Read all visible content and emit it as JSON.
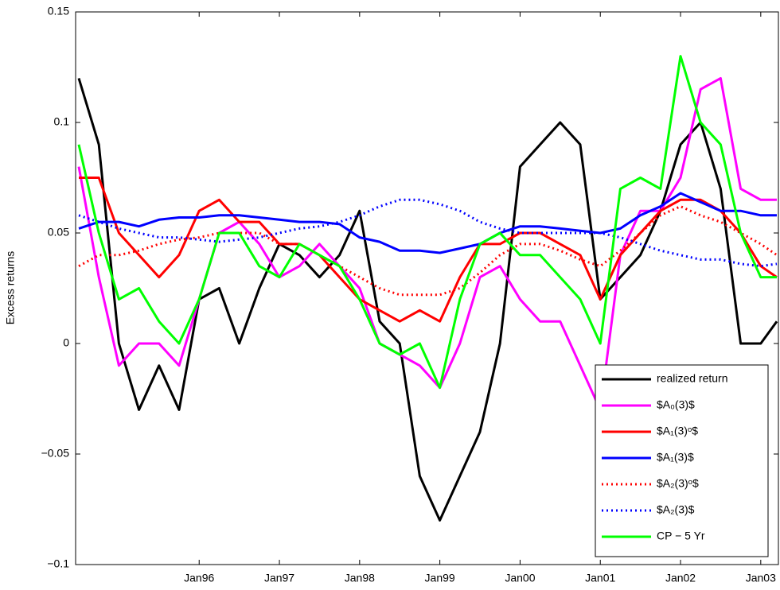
{
  "chart_data": {
    "type": "line",
    "ylabel": "Excess returns",
    "x": [
      1994.5,
      1994.75,
      1995,
      1995.25,
      1995.5,
      1995.75,
      1996,
      1996.25,
      1996.5,
      1996.75,
      1997,
      1997.25,
      1997.5,
      1997.75,
      1998,
      1998.25,
      1998.5,
      1998.75,
      1999,
      1999.25,
      1999.5,
      1999.75,
      2000,
      2000.25,
      2000.5,
      2000.75,
      2001,
      2001.25,
      2001.5,
      2001.75,
      2002,
      2002.25,
      2002.5,
      2002.75,
      2003,
      2003.2
    ],
    "xlim": [
      1994.46,
      2003.22
    ],
    "xticks": [
      {
        "value": 1996,
        "label": "Jan96"
      },
      {
        "value": 1997,
        "label": "Jan97"
      },
      {
        "value": 1998,
        "label": "Jan98"
      },
      {
        "value": 1999,
        "label": "Jan99"
      },
      {
        "value": 2000,
        "label": "Jan00"
      },
      {
        "value": 2001,
        "label": "Jan01"
      },
      {
        "value": 2002,
        "label": "Jan02"
      },
      {
        "value": 2003,
        "label": "Jan03"
      }
    ],
    "ylim": [
      -0.1,
      0.15
    ],
    "yticks": [
      {
        "value": -0.1,
        "label": "−0.1"
      },
      {
        "value": -0.05,
        "label": "−0.05"
      },
      0,
      0.05,
      0.1,
      0.15
    ],
    "legend": "lower right",
    "series": [
      {
        "name": "realized return",
        "color": "#000000",
        "dash": "solid",
        "values": [
          0.12,
          0.09,
          0.0,
          -0.03,
          -0.01,
          -0.03,
          0.02,
          0.025,
          0.0,
          0.025,
          0.045,
          0.04,
          0.03,
          0.04,
          0.06,
          0.01,
          0.0,
          -0.06,
          -0.08,
          -0.06,
          -0.04,
          0.0,
          0.08,
          0.09,
          0.1,
          0.09,
          0.02,
          0.03,
          0.04,
          0.06,
          0.09,
          0.1,
          0.07,
          0.0,
          0.0,
          0.01
        ]
      },
      {
        "name": "$A₀(3)$",
        "color": "#ff00ff",
        "dash": "solid",
        "values": [
          0.08,
          0.03,
          -0.01,
          0.0,
          0.0,
          -0.01,
          0.02,
          0.05,
          0.055,
          0.045,
          0.03,
          0.035,
          0.045,
          0.035,
          0.025,
          0.0,
          -0.005,
          -0.01,
          -0.02,
          0.0,
          0.03,
          0.035,
          0.02,
          0.01,
          0.01,
          -0.01,
          -0.03,
          0.04,
          0.06,
          0.06,
          0.075,
          0.115,
          0.12,
          0.07,
          0.065,
          0.065
        ]
      },
      {
        "name": "$A₁(3)ᵒ$",
        "color": "#ff0000",
        "dash": "solid",
        "values": [
          0.075,
          0.075,
          0.05,
          0.04,
          0.03,
          0.04,
          0.06,
          0.065,
          0.055,
          0.055,
          0.045,
          0.045,
          0.04,
          0.03,
          0.02,
          0.015,
          0.01,
          0.015,
          0.01,
          0.03,
          0.045,
          0.045,
          0.05,
          0.05,
          0.045,
          0.04,
          0.02,
          0.04,
          0.05,
          0.06,
          0.065,
          0.065,
          0.06,
          0.05,
          0.035,
          0.03
        ]
      },
      {
        "name": "$A₁(3)$",
        "color": "#0000ff",
        "dash": "solid",
        "values": [
          0.052,
          0.055,
          0.055,
          0.053,
          0.056,
          0.057,
          0.057,
          0.058,
          0.058,
          0.057,
          0.056,
          0.055,
          0.055,
          0.054,
          0.048,
          0.046,
          0.042,
          0.042,
          0.041,
          0.043,
          0.045,
          0.05,
          0.053,
          0.053,
          0.052,
          0.051,
          0.05,
          0.052,
          0.058,
          0.062,
          0.068,
          0.064,
          0.06,
          0.06,
          0.058,
          0.058
        ]
      },
      {
        "name": "$A₂(3)ᵒ$",
        "color": "#ff0000",
        "dash": "dotted",
        "values": [
          0.035,
          0.04,
          0.04,
          0.042,
          0.045,
          0.047,
          0.048,
          0.05,
          0.05,
          0.05,
          0.045,
          0.045,
          0.04,
          0.035,
          0.03,
          0.025,
          0.022,
          0.022,
          0.022,
          0.025,
          0.032,
          0.04,
          0.045,
          0.045,
          0.042,
          0.038,
          0.035,
          0.042,
          0.05,
          0.058,
          0.062,
          0.058,
          0.055,
          0.05,
          0.045,
          0.04
        ]
      },
      {
        "name": "$A₂(3)$",
        "color": "#0000ff",
        "dash": "dotted",
        "values": [
          0.058,
          0.055,
          0.052,
          0.05,
          0.048,
          0.048,
          0.047,
          0.046,
          0.047,
          0.048,
          0.05,
          0.052,
          0.053,
          0.055,
          0.058,
          0.062,
          0.065,
          0.065,
          0.063,
          0.06,
          0.055,
          0.052,
          0.05,
          0.05,
          0.05,
          0.05,
          0.05,
          0.048,
          0.045,
          0.042,
          0.04,
          0.038,
          0.038,
          0.036,
          0.035,
          0.036
        ]
      },
      {
        "name": "CP − 5 Yr",
        "color": "#00ff00",
        "dash": "solid",
        "values": [
          0.09,
          0.05,
          0.02,
          0.025,
          0.01,
          0.0,
          0.02,
          0.05,
          0.05,
          0.035,
          0.03,
          0.045,
          0.04,
          0.035,
          0.02,
          0.0,
          -0.005,
          0.0,
          -0.02,
          0.02,
          0.045,
          0.05,
          0.04,
          0.04,
          0.03,
          0.02,
          0.0,
          0.07,
          0.075,
          0.07,
          0.13,
          0.1,
          0.09,
          0.05,
          0.03,
          0.03
        ]
      }
    ]
  }
}
